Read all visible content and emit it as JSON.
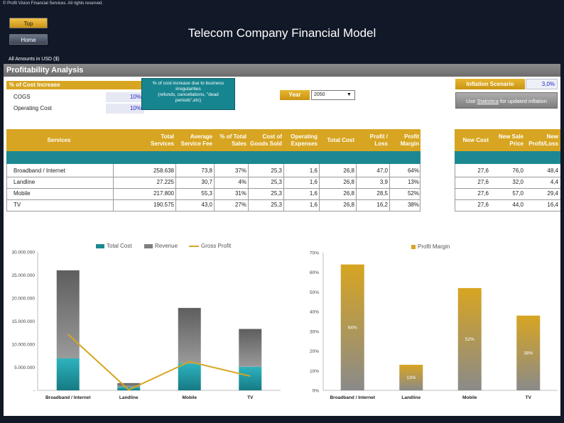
{
  "copyright": "© Profit Vision Financial Services. All rights reserved.",
  "nav": {
    "top_label": "Top",
    "home_label": "Home"
  },
  "title": "Telecom Company Financial Model",
  "amounts_note": "All Amounts in  USD ($)",
  "section_title": "Profitability Analysis",
  "cost_increase": {
    "header": "% of Cost Increase",
    "rows": [
      {
        "label": "COGS",
        "value": "10%"
      },
      {
        "label": "Operating Cost",
        "value": "10%"
      }
    ],
    "note_lines": [
      "% of cost increase due to business",
      "irregularities",
      "(refunds, cancellations,  \"dead",
      "periods\",etc)"
    ]
  },
  "year": {
    "label": "Year",
    "value": "2050"
  },
  "inflation": {
    "label": "Inflation Scenario",
    "value": "3,0%",
    "button_prefix": "Use ",
    "button_link": "Statistica",
    "button_suffix": " for updated inflation"
  },
  "table": {
    "headers": [
      [
        "Services"
      ],
      [
        "Total",
        "Services"
      ],
      [
        "Average",
        "Service Fee"
      ],
      [
        "% of Total",
        "Sales"
      ],
      [
        "Cost of",
        "Goods Sold"
      ],
      [
        "Operating",
        "Expenses"
      ],
      [
        "Total Cost"
      ],
      [
        "Profit /",
        "Loss"
      ],
      [
        "Profit",
        "Margin"
      ]
    ],
    "rows": [
      [
        "Broadband / Internet",
        "258.638",
        "73,8",
        "37%",
        "25,3",
        "1,6",
        "26,8",
        "47,0",
        "64%"
      ],
      [
        "Landline",
        "27.225",
        "30,7",
        "4%",
        "25,3",
        "1,6",
        "26,8",
        "3,9",
        "13%"
      ],
      [
        "Mobile",
        "217.800",
        "55,3",
        "31%",
        "25,3",
        "1,6",
        "26,8",
        "28,5",
        "52%"
      ],
      [
        "TV",
        "190.575",
        "43,0",
        "27%",
        "25,3",
        "1,6",
        "26,8",
        "16,2",
        "38%"
      ]
    ]
  },
  "side_table": {
    "headers": [
      [
        "New Cost"
      ],
      [
        "New Sale",
        "Price"
      ],
      [
        "New",
        "Profit/Loss"
      ]
    ],
    "rows": [
      [
        "27,6",
        "76,0",
        "48,4"
      ],
      [
        "27,6",
        "32,0",
        "4,4"
      ],
      [
        "27,6",
        "57,0",
        "29,4"
      ],
      [
        "27,6",
        "44,0",
        "16,4"
      ]
    ]
  },
  "colors": {
    "gold": "#d7a521",
    "teal": "#1d8891",
    "gray": "#7f7f7f",
    "dark": "#111827"
  },
  "chart_data": [
    {
      "type": "bar",
      "stacked": true,
      "categories": [
        "Broadband / Internet",
        "Landline",
        "Mobile",
        "TV"
      ],
      "series": [
        {
          "name": "Total Cost",
          "color": "#1d8891",
          "values": [
            6930000,
            730000,
            5830000,
            5110000
          ]
        },
        {
          "name": "Revenue",
          "color": "#7f7f7f",
          "values": [
            19090000,
            840000,
            12040000,
            8200000
          ]
        },
        {
          "name": "Gross Profit",
          "kind": "line",
          "color": "#d7a521",
          "values": [
            12160000,
            110000,
            6210000,
            3090000
          ]
        }
      ],
      "yticks": [
        "30.000.000",
        "25.000.000",
        "20.000.000",
        "15.000.000",
        "10.000.000",
        "5.000.000",
        "-"
      ],
      "ylim": [
        0,
        30000000
      ],
      "legend_position": "top"
    },
    {
      "type": "bar",
      "categories": [
        "Broadband / Internet",
        "Landline",
        "Mobile",
        "TV"
      ],
      "series": [
        {
          "name": "Profit Margin",
          "color": "#d7a521",
          "values": [
            64,
            13,
            52,
            38
          ]
        }
      ],
      "data_labels": [
        "64%",
        "13%",
        "52%",
        "38%"
      ],
      "yticks": [
        "70%",
        "60%",
        "50%",
        "40%",
        "30%",
        "20%",
        "10%",
        "0%"
      ],
      "ylim": [
        0,
        70
      ],
      "legend_position": "top"
    }
  ]
}
